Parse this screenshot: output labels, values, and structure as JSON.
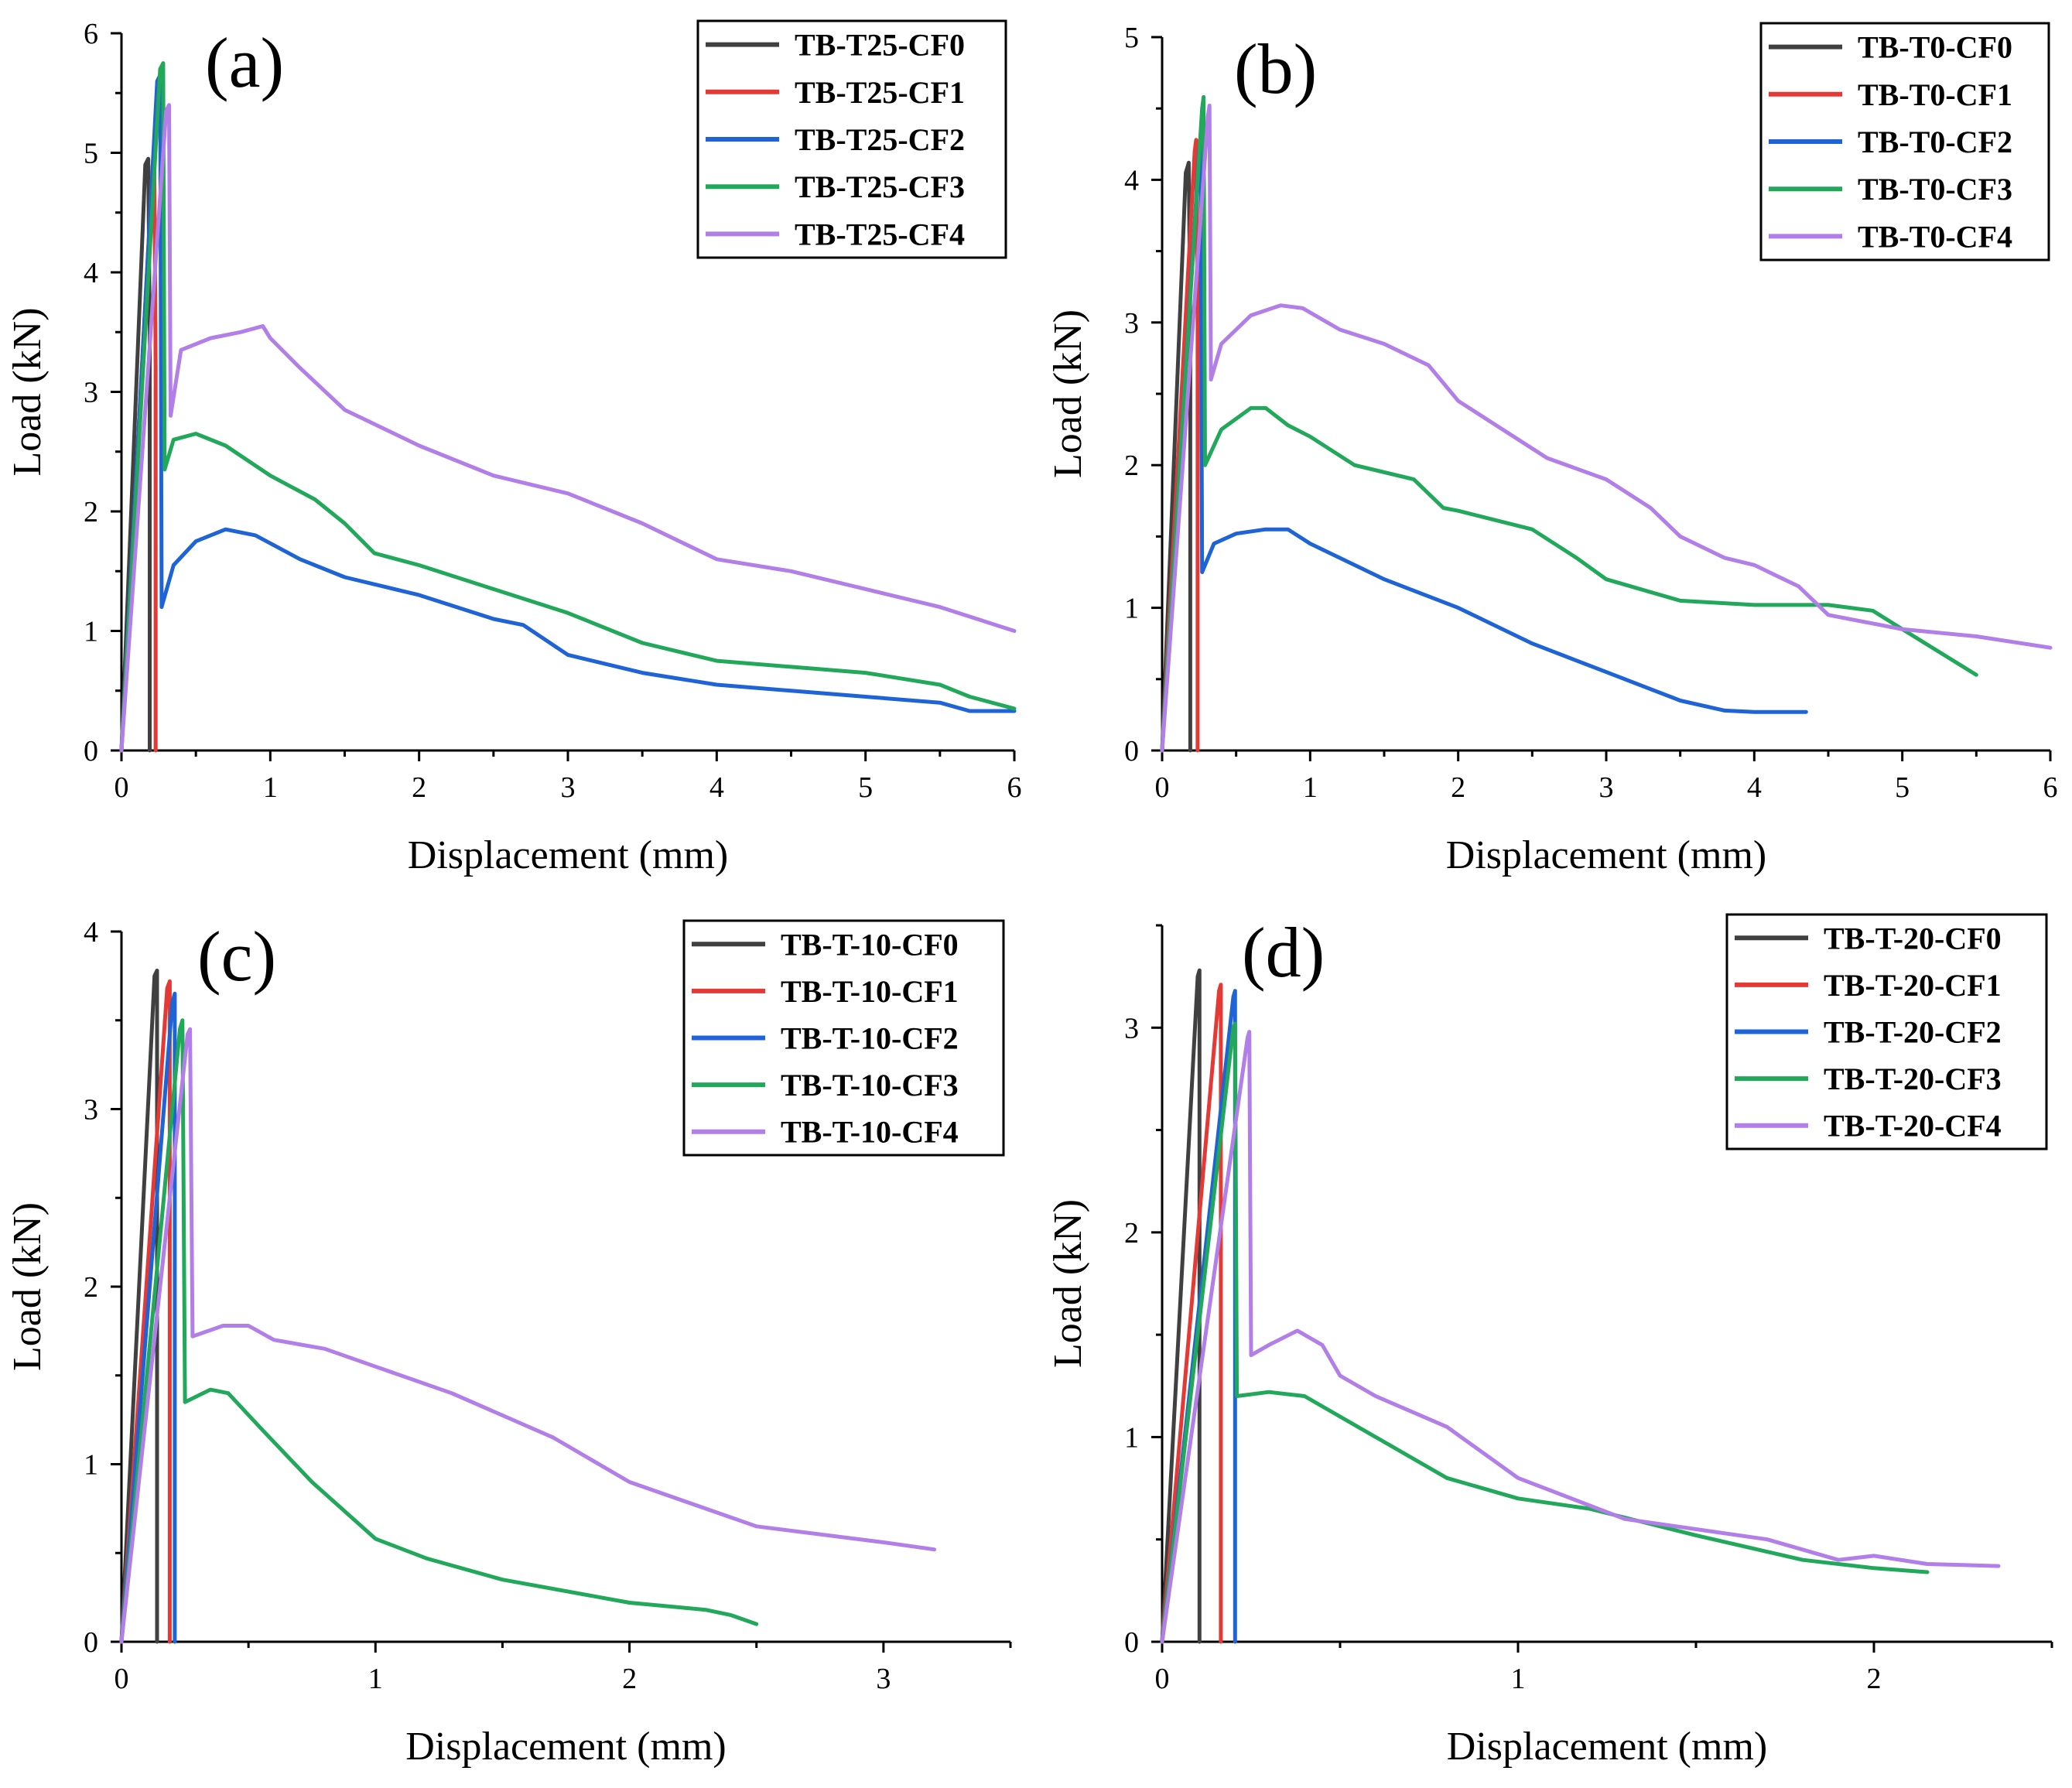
{
  "chart_data": [
    {
      "type": "line",
      "panel_label": "(a)",
      "xlabel": "Displacement (mm)",
      "ylabel": "Load (kN)",
      "xlim": [
        0,
        6
      ],
      "ylim": [
        0,
        6
      ],
      "xticks": [
        0,
        1,
        2,
        3,
        4,
        5,
        6
      ],
      "yticks": [
        0,
        1,
        2,
        3,
        4,
        5,
        6
      ],
      "legend_position": "top-right",
      "series": [
        {
          "name": "TB-T25-CF0",
          "color": "#404040",
          "x": [
            0,
            0.16,
            0.18,
            0.19,
            0.19
          ],
          "y": [
            0,
            4.9,
            4.95,
            3.5,
            0
          ]
        },
        {
          "name": "TB-T25-CF1",
          "color": "#e53935",
          "x": [
            0,
            0.21,
            0.22,
            0.23,
            0.23
          ],
          "y": [
            0,
            4.9,
            5.05,
            3.2,
            0
          ]
        },
        {
          "name": "TB-T25-CF2",
          "color": "#1e64d6",
          "x": [
            0,
            0.24,
            0.26,
            0.27,
            0.35,
            0.5,
            0.7,
            0.9,
            1.2,
            1.5,
            2.0,
            2.5,
            2.7,
            3.0,
            3.5,
            4.0,
            4.5,
            5.0,
            5.5,
            5.7,
            6.0
          ],
          "y": [
            0,
            5.6,
            5.65,
            1.2,
            1.55,
            1.75,
            1.85,
            1.8,
            1.6,
            1.45,
            1.3,
            1.1,
            1.05,
            0.8,
            0.65,
            0.55,
            0.5,
            0.45,
            0.4,
            0.33,
            0.33
          ]
        },
        {
          "name": "TB-T25-CF3",
          "color": "#22a85a",
          "x": [
            0,
            0.26,
            0.28,
            0.29,
            0.35,
            0.5,
            0.7,
            1.0,
            1.3,
            1.5,
            1.7,
            2.0,
            2.5,
            3.0,
            3.5,
            4.0,
            4.5,
            5.0,
            5.5,
            5.7,
            6.0
          ],
          "y": [
            0,
            5.7,
            5.75,
            2.35,
            2.6,
            2.65,
            2.55,
            2.3,
            2.1,
            1.9,
            1.65,
            1.55,
            1.35,
            1.15,
            0.9,
            0.75,
            0.7,
            0.65,
            0.55,
            0.45,
            0.35
          ]
        },
        {
          "name": "TB-T25-CF4",
          "color": "#b27ee8",
          "x": [
            0,
            0.3,
            0.32,
            0.33,
            0.4,
            0.6,
            0.8,
            0.95,
            1.0,
            1.2,
            1.5,
            2.0,
            2.5,
            3.0,
            3.5,
            4.0,
            4.5,
            5.0,
            5.5,
            6.0
          ],
          "y": [
            0,
            5.35,
            5.4,
            2.8,
            3.35,
            3.45,
            3.5,
            3.55,
            3.45,
            3.2,
            2.85,
            2.55,
            2.3,
            2.15,
            1.9,
            1.6,
            1.5,
            1.35,
            1.2,
            1.0
          ]
        }
      ]
    },
    {
      "type": "line",
      "panel_label": "(b)",
      "xlabel": "Displacement (mm)",
      "ylabel": "Load (kN)",
      "xlim": [
        0,
        6
      ],
      "ylim": [
        0,
        5
      ],
      "xticks": [
        0,
        1,
        2,
        3,
        4,
        5,
        6
      ],
      "yticks": [
        0,
        1,
        2,
        3,
        4,
        5
      ],
      "legend_position": "top-right",
      "series": [
        {
          "name": "TB-T0-CF0",
          "color": "#404040",
          "x": [
            0,
            0.16,
            0.18,
            0.19,
            0.19
          ],
          "y": [
            0,
            4.05,
            4.12,
            3.0,
            0
          ]
        },
        {
          "name": "TB-T0-CF1",
          "color": "#e53935",
          "x": [
            0,
            0.22,
            0.23,
            0.24,
            0.24
          ],
          "y": [
            0,
            4.2,
            4.28,
            3.0,
            0
          ]
        },
        {
          "name": "TB-T0-CF2",
          "color": "#1e64d6",
          "x": [
            0,
            0.25,
            0.26,
            0.27,
            0.35,
            0.5,
            0.7,
            0.85,
            1.0,
            1.5,
            2.0,
            2.5,
            3.0,
            3.5,
            3.8,
            4.0,
            4.35
          ],
          "y": [
            0,
            4.2,
            4.3,
            1.25,
            1.45,
            1.52,
            1.55,
            1.55,
            1.45,
            1.2,
            1.0,
            0.75,
            0.55,
            0.35,
            0.28,
            0.27,
            0.27
          ]
        },
        {
          "name": "TB-T0-CF3",
          "color": "#22a85a",
          "x": [
            0,
            0.27,
            0.28,
            0.29,
            0.4,
            0.6,
            0.7,
            0.85,
            1.0,
            1.3,
            1.7,
            1.9,
            2.0,
            2.5,
            2.8,
            3.0,
            3.5,
            4.0,
            4.5,
            4.8,
            5.0,
            5.5
          ],
          "y": [
            0,
            4.5,
            4.58,
            2.0,
            2.25,
            2.4,
            2.4,
            2.28,
            2.2,
            2.0,
            1.9,
            1.7,
            1.68,
            1.55,
            1.35,
            1.2,
            1.05,
            1.02,
            1.02,
            0.98,
            0.85,
            0.53
          ]
        },
        {
          "name": "TB-T0-CF4",
          "color": "#b27ee8",
          "x": [
            0,
            0.31,
            0.32,
            0.33,
            0.4,
            0.6,
            0.8,
            0.95,
            1.2,
            1.5,
            1.8,
            2.0,
            2.3,
            2.6,
            3.0,
            3.3,
            3.5,
            3.8,
            4.0,
            4.3,
            4.5,
            5.0,
            5.5,
            6.0
          ],
          "y": [
            0,
            4.45,
            4.52,
            2.6,
            2.85,
            3.05,
            3.12,
            3.1,
            2.95,
            2.85,
            2.7,
            2.45,
            2.25,
            2.05,
            1.9,
            1.7,
            1.5,
            1.35,
            1.3,
            1.15,
            0.95,
            0.85,
            0.8,
            0.72
          ]
        }
      ]
    },
    {
      "type": "line",
      "panel_label": "(c)",
      "xlabel": "Displacement (mm)",
      "ylabel": "Load (kN)",
      "xlim": [
        0,
        3.5
      ],
      "ylim": [
        0,
        4
      ],
      "xticks": [
        0,
        1,
        2,
        3
      ],
      "yticks": [
        0,
        1,
        2,
        3,
        4
      ],
      "legend_position": "top-right",
      "series": [
        {
          "name": "TB-T-10-CF0",
          "color": "#404040",
          "x": [
            0,
            0.13,
            0.14,
            0.14
          ],
          "y": [
            0,
            3.75,
            3.78,
            0
          ]
        },
        {
          "name": "TB-T-10-CF1",
          "color": "#e53935",
          "x": [
            0,
            0.18,
            0.19,
            0.19
          ],
          "y": [
            0,
            3.68,
            3.72,
            0
          ]
        },
        {
          "name": "TB-T-10-CF2",
          "color": "#1e64d6",
          "x": [
            0,
            0.2,
            0.21,
            0.21
          ],
          "y": [
            0,
            3.6,
            3.65,
            0
          ]
        },
        {
          "name": "TB-T-10-CF3",
          "color": "#22a85a",
          "x": [
            0,
            0.23,
            0.24,
            0.25,
            0.35,
            0.42,
            0.55,
            0.75,
            1.0,
            1.2,
            1.5,
            2.0,
            2.3,
            2.4,
            2.5
          ],
          "y": [
            0,
            3.45,
            3.5,
            1.35,
            1.42,
            1.4,
            1.2,
            0.9,
            0.58,
            0.47,
            0.35,
            0.22,
            0.18,
            0.15,
            0.1
          ]
        },
        {
          "name": "TB-T-10-CF4",
          "color": "#b27ee8",
          "x": [
            0,
            0.26,
            0.27,
            0.28,
            0.4,
            0.5,
            0.6,
            0.8,
            1.0,
            1.3,
            1.7,
            2.0,
            2.5,
            3.0,
            3.2
          ],
          "y": [
            0,
            3.42,
            3.45,
            1.72,
            1.78,
            1.78,
            1.7,
            1.65,
            1.55,
            1.4,
            1.15,
            0.9,
            0.65,
            0.56,
            0.52
          ]
        }
      ]
    },
    {
      "type": "line",
      "panel_label": "(d)",
      "xlabel": "Displacement (mm)",
      "ylabel": "Load (kN)",
      "xlim": [
        0,
        2.5
      ],
      "ylim": [
        0,
        3.5
      ],
      "xticks": [
        0,
        1,
        2
      ],
      "yticks": [
        0,
        1,
        2,
        3
      ],
      "legend_position": "top-right",
      "series": [
        {
          "name": "TB-T-20-CF0",
          "color": "#404040",
          "x": [
            0,
            0.1,
            0.105,
            0.105
          ],
          "y": [
            0,
            3.25,
            3.28,
            0
          ]
        },
        {
          "name": "TB-T-20-CF1",
          "color": "#e53935",
          "x": [
            0,
            0.16,
            0.165,
            0.165
          ],
          "y": [
            0,
            3.18,
            3.21,
            0
          ]
        },
        {
          "name": "TB-T-20-CF2",
          "color": "#1e64d6",
          "x": [
            0,
            0.2,
            0.205,
            0.205
          ],
          "y": [
            0,
            3.15,
            3.18,
            0
          ]
        },
        {
          "name": "TB-T-20-CF3",
          "color": "#22a85a",
          "x": [
            0,
            0.2,
            0.205,
            0.21,
            0.3,
            0.4,
            0.6,
            0.8,
            1.0,
            1.2,
            1.5,
            1.8,
            2.0,
            2.15
          ],
          "y": [
            0,
            3.0,
            3.02,
            1.2,
            1.22,
            1.2,
            1.0,
            0.8,
            0.7,
            0.65,
            0.52,
            0.4,
            0.36,
            0.34
          ]
        },
        {
          "name": "TB-T-20-CF4",
          "color": "#b27ee8",
          "x": [
            0,
            0.24,
            0.245,
            0.25,
            0.3,
            0.38,
            0.45,
            0.5,
            0.6,
            0.8,
            1.0,
            1.3,
            1.5,
            1.7,
            1.9,
            2.0,
            2.15,
            2.35
          ],
          "y": [
            0,
            2.95,
            2.98,
            1.4,
            1.45,
            1.52,
            1.45,
            1.3,
            1.2,
            1.05,
            0.8,
            0.6,
            0.55,
            0.5,
            0.4,
            0.42,
            0.38,
            0.37
          ]
        }
      ]
    }
  ]
}
